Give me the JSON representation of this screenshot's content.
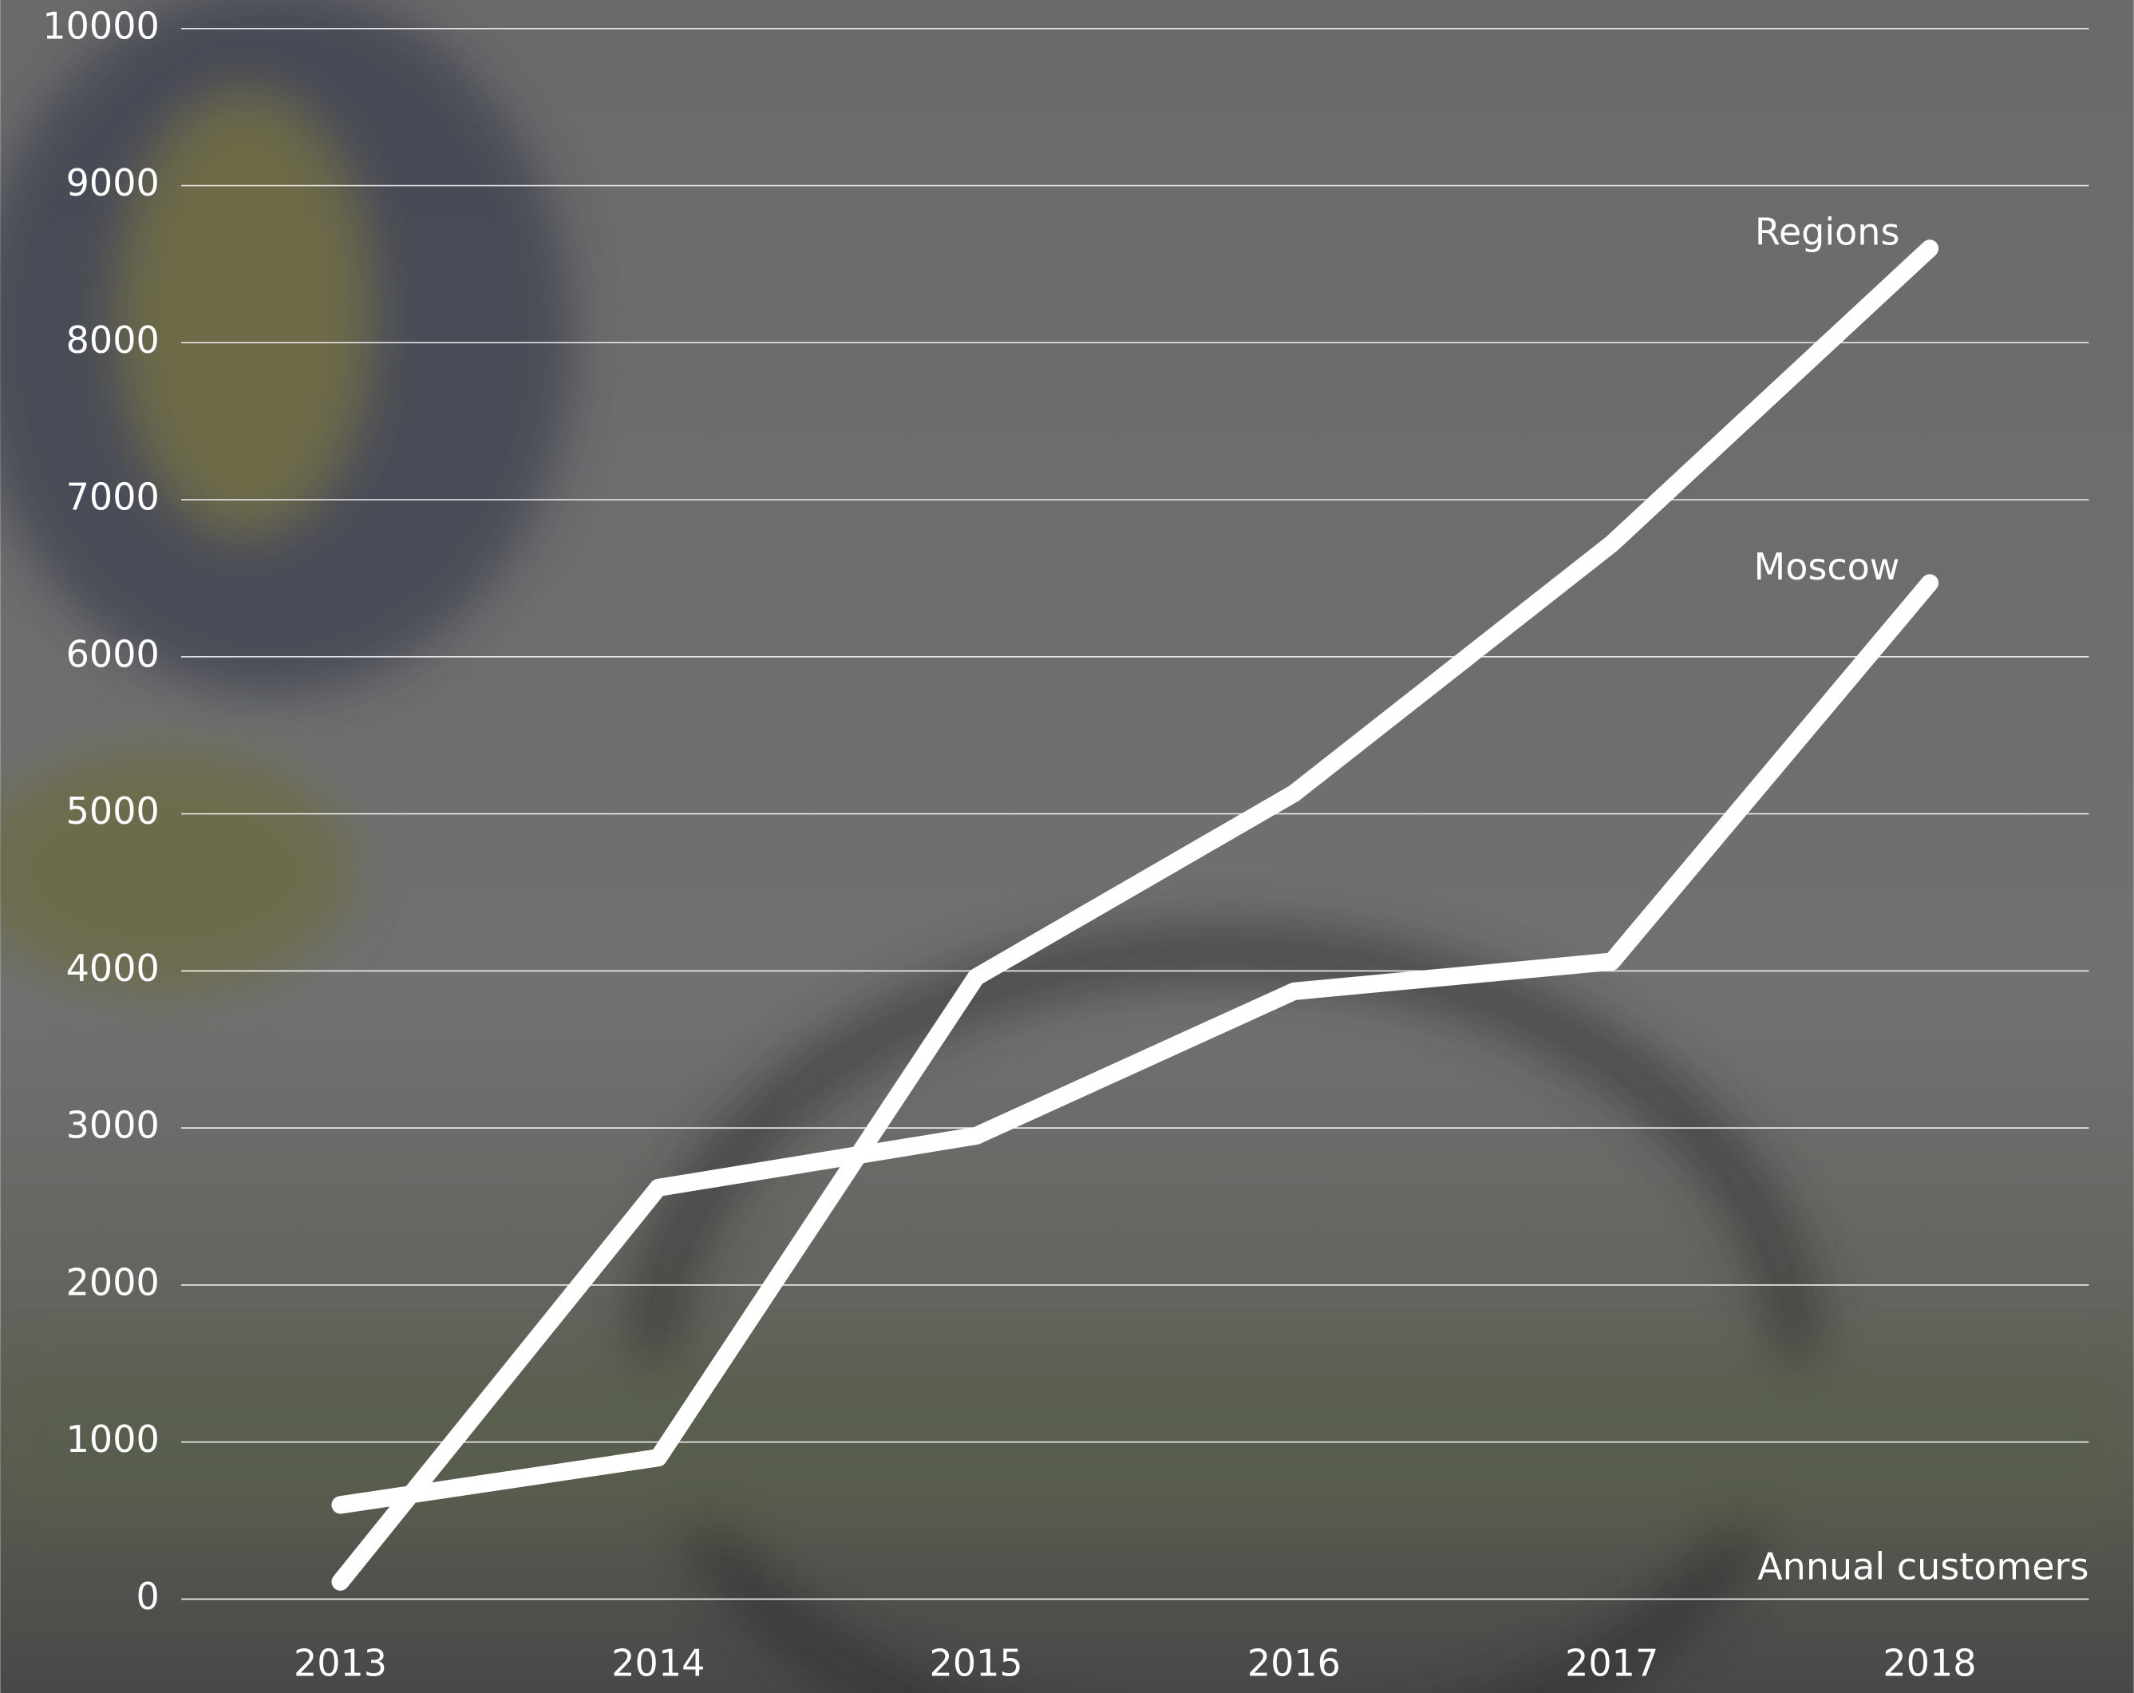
{
  "chart_data": {
    "type": "line",
    "annotation": "Annual customers",
    "categories": [
      "2013",
      "2014",
      "2015",
      "2016",
      "2017",
      "2018"
    ],
    "series": [
      {
        "name": "Regions",
        "color": "#ffffff",
        "values": [
          600,
          900,
          3960,
          5130,
          6720,
          8600
        ]
      },
      {
        "name": "Moscow",
        "color": "#ffffff",
        "values": [
          110,
          2620,
          2950,
          3870,
          4060,
          6470
        ]
      }
    ],
    "ylim": [
      0,
      10000
    ],
    "yticks": [
      0,
      1000,
      2000,
      3000,
      4000,
      5000,
      6000,
      7000,
      8000,
      9000,
      10000
    ],
    "grid": true
  }
}
